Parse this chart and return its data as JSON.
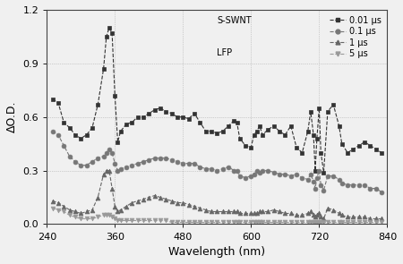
{
  "title": "",
  "xlabel": "Wavelength (nm)",
  "ylabel": "ΔO.D.",
  "xlim": [
    240,
    840
  ],
  "ylim": [
    0.0,
    1.2
  ],
  "xticks": [
    240,
    360,
    480,
    600,
    720,
    840
  ],
  "yticks": [
    0.0,
    0.3,
    0.6,
    0.9,
    1.2
  ],
  "background_color": "#f0f0f0",
  "fig_background": "#f0f0f0",
  "series": {
    "s001": {
      "x": [
        250,
        260,
        270,
        280,
        290,
        300,
        310,
        320,
        330,
        340,
        345,
        350,
        355,
        360,
        365,
        370,
        380,
        390,
        400,
        410,
        420,
        430,
        440,
        450,
        460,
        470,
        480,
        490,
        500,
        510,
        520,
        530,
        540,
        550,
        560,
        570,
        575,
        580,
        590,
        600,
        605,
        610,
        615,
        620,
        630,
        640,
        650,
        660,
        670,
        680,
        690,
        700,
        705,
        710,
        713,
        716,
        720,
        723,
        728,
        735,
        745,
        755,
        760,
        770,
        780,
        790,
        800,
        810,
        820,
        830
      ],
      "y": [
        0.7,
        0.68,
        0.57,
        0.54,
        0.5,
        0.48,
        0.5,
        0.54,
        0.67,
        0.87,
        1.05,
        1.1,
        1.07,
        0.72,
        0.46,
        0.52,
        0.56,
        0.57,
        0.6,
        0.6,
        0.62,
        0.64,
        0.65,
        0.63,
        0.62,
        0.6,
        0.6,
        0.59,
        0.62,
        0.57,
        0.52,
        0.52,
        0.51,
        0.52,
        0.55,
        0.58,
        0.57,
        0.48,
        0.44,
        0.43,
        0.5,
        0.52,
        0.55,
        0.5,
        0.53,
        0.55,
        0.52,
        0.5,
        0.55,
        0.43,
        0.4,
        0.52,
        0.63,
        0.5,
        0.3,
        0.48,
        0.65,
        0.4,
        0.29,
        0.63,
        0.67,
        0.55,
        0.45,
        0.4,
        0.42,
        0.44,
        0.46,
        0.44,
        0.42,
        0.4
      ],
      "color": "#333333",
      "marker": "s",
      "markersize": 3.5,
      "linestyle": "--",
      "linewidth": 0.8
    },
    "s01": {
      "x": [
        250,
        260,
        270,
        280,
        290,
        300,
        310,
        320,
        330,
        340,
        345,
        350,
        355,
        360,
        365,
        370,
        380,
        390,
        400,
        410,
        420,
        430,
        440,
        450,
        460,
        470,
        480,
        490,
        500,
        510,
        520,
        530,
        540,
        550,
        560,
        570,
        575,
        580,
        590,
        600,
        605,
        610,
        615,
        620,
        630,
        640,
        650,
        660,
        670,
        680,
        690,
        700,
        705,
        710,
        713,
        716,
        720,
        723,
        728,
        735,
        745,
        755,
        760,
        770,
        780,
        790,
        800,
        810,
        820,
        830
      ],
      "y": [
        0.52,
        0.5,
        0.44,
        0.38,
        0.35,
        0.33,
        0.33,
        0.35,
        0.37,
        0.38,
        0.4,
        0.42,
        0.4,
        0.34,
        0.3,
        0.31,
        0.32,
        0.33,
        0.34,
        0.35,
        0.36,
        0.37,
        0.37,
        0.37,
        0.36,
        0.35,
        0.34,
        0.34,
        0.34,
        0.32,
        0.31,
        0.31,
        0.3,
        0.31,
        0.32,
        0.3,
        0.3,
        0.27,
        0.26,
        0.27,
        0.28,
        0.3,
        0.29,
        0.3,
        0.3,
        0.29,
        0.28,
        0.28,
        0.27,
        0.28,
        0.26,
        0.25,
        0.28,
        0.24,
        0.2,
        0.26,
        0.3,
        0.22,
        0.19,
        0.27,
        0.27,
        0.25,
        0.23,
        0.22,
        0.22,
        0.22,
        0.22,
        0.2,
        0.2,
        0.18
      ],
      "color": "#777777",
      "marker": "o",
      "markersize": 3.5,
      "linestyle": "--",
      "linewidth": 0.8
    },
    "s1": {
      "x": [
        250,
        260,
        270,
        280,
        290,
        300,
        310,
        320,
        330,
        340,
        345,
        350,
        355,
        360,
        365,
        370,
        380,
        390,
        400,
        410,
        420,
        430,
        440,
        450,
        460,
        470,
        480,
        490,
        500,
        510,
        520,
        530,
        540,
        550,
        560,
        570,
        575,
        580,
        590,
        600,
        605,
        610,
        615,
        620,
        630,
        640,
        650,
        660,
        670,
        680,
        690,
        700,
        705,
        710,
        713,
        716,
        720,
        723,
        728,
        735,
        745,
        755,
        760,
        770,
        780,
        790,
        800,
        810,
        820,
        830
      ],
      "y": [
        0.13,
        0.12,
        0.1,
        0.08,
        0.07,
        0.06,
        0.07,
        0.08,
        0.15,
        0.28,
        0.3,
        0.3,
        0.2,
        0.1,
        0.07,
        0.08,
        0.1,
        0.12,
        0.13,
        0.14,
        0.15,
        0.16,
        0.15,
        0.14,
        0.13,
        0.12,
        0.12,
        0.11,
        0.1,
        0.09,
        0.08,
        0.07,
        0.07,
        0.07,
        0.07,
        0.07,
        0.07,
        0.06,
        0.06,
        0.06,
        0.06,
        0.06,
        0.07,
        0.07,
        0.07,
        0.08,
        0.07,
        0.06,
        0.06,
        0.05,
        0.05,
        0.06,
        0.07,
        0.05,
        0.04,
        0.05,
        0.06,
        0.04,
        0.03,
        0.09,
        0.08,
        0.06,
        0.05,
        0.04,
        0.04,
        0.04,
        0.04,
        0.03,
        0.03,
        0.03
      ],
      "color": "#666666",
      "marker": "^",
      "markersize": 3.5,
      "linestyle": "--",
      "linewidth": 0.8
    },
    "s5": {
      "x": [
        250,
        260,
        270,
        280,
        290,
        300,
        310,
        320,
        330,
        340,
        345,
        350,
        355,
        360,
        365,
        370,
        380,
        390,
        400,
        410,
        420,
        430,
        440,
        450,
        460,
        470,
        480,
        490,
        500,
        510,
        520,
        530,
        540,
        550,
        560,
        570,
        575,
        580,
        590,
        600,
        605,
        610,
        615,
        620,
        630,
        640,
        650,
        660,
        670,
        680,
        690,
        700,
        705,
        710,
        713,
        716,
        720,
        723,
        728,
        735,
        745,
        755,
        760,
        770,
        780,
        790,
        800,
        810,
        820,
        830
      ],
      "y": [
        0.09,
        0.08,
        0.07,
        0.05,
        0.04,
        0.03,
        0.03,
        0.03,
        0.04,
        0.05,
        0.05,
        0.05,
        0.04,
        0.03,
        0.02,
        0.02,
        0.02,
        0.02,
        0.02,
        0.02,
        0.02,
        0.02,
        0.02,
        0.02,
        0.01,
        0.01,
        0.01,
        0.01,
        0.01,
        0.01,
        0.01,
        0.01,
        0.01,
        0.01,
        0.01,
        0.01,
        0.01,
        0.01,
        0.01,
        0.01,
        0.01,
        0.01,
        0.01,
        0.01,
        0.01,
        0.01,
        0.01,
        0.01,
        0.01,
        0.01,
        0.01,
        0.01,
        0.01,
        0.01,
        0.01,
        0.01,
        0.01,
        0.01,
        0.01,
        0.01,
        0.01,
        0.01,
        0.01,
        0.01,
        0.01,
        0.01,
        0.01,
        0.01,
        0.01,
        0.01
      ],
      "color": "#999999",
      "marker": "v",
      "markersize": 3.5,
      "linestyle": "--",
      "linewidth": 0.8
    }
  },
  "legend": {
    "labels": [
      "0.01 μs",
      "0.1 μs",
      "1 μs",
      "5 μs"
    ],
    "extra_text": [
      "S-SWNT",
      "LFP"
    ],
    "fontsize": 7,
    "frameon": false
  }
}
